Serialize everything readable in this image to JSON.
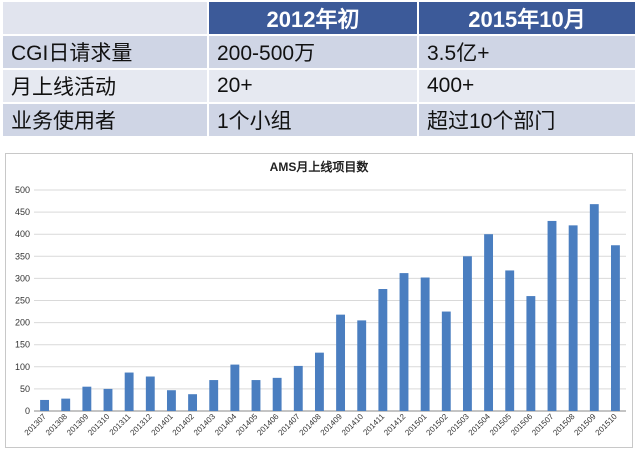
{
  "table": {
    "header": [
      "",
      "2012年初",
      "2015年10月"
    ],
    "rows": [
      [
        "CGI日请求量",
        "200-500万",
        "3.5亿+"
      ],
      [
        "月上线活动",
        "20+",
        "400+"
      ],
      [
        "业务使用者",
        "1个小组",
        "超过10个部门"
      ]
    ]
  },
  "chart_data": {
    "type": "bar",
    "title": "AMS月上线项目数",
    "xlabel": "",
    "ylabel": "",
    "ylim": [
      0,
      500
    ],
    "yticks": [
      0,
      50,
      100,
      150,
      200,
      250,
      300,
      350,
      400,
      450,
      500
    ],
    "grid": true,
    "bar_color": "#4a7ec0",
    "categories": [
      "201307",
      "201308",
      "201309",
      "201310",
      "201311",
      "201312",
      "201401",
      "201402",
      "201403",
      "201404",
      "201405",
      "201406",
      "201407",
      "201408",
      "201409",
      "201410",
      "201411",
      "201412",
      "201501",
      "201502",
      "201503",
      "201504",
      "201505",
      "201506",
      "201507",
      "201508",
      "201509",
      "201510"
    ],
    "values": [
      25,
      28,
      55,
      50,
      87,
      78,
      47,
      38,
      70,
      105,
      70,
      75,
      102,
      132,
      218,
      205,
      276,
      312,
      302,
      225,
      350,
      400,
      318,
      260,
      430,
      420,
      468,
      375
    ]
  }
}
